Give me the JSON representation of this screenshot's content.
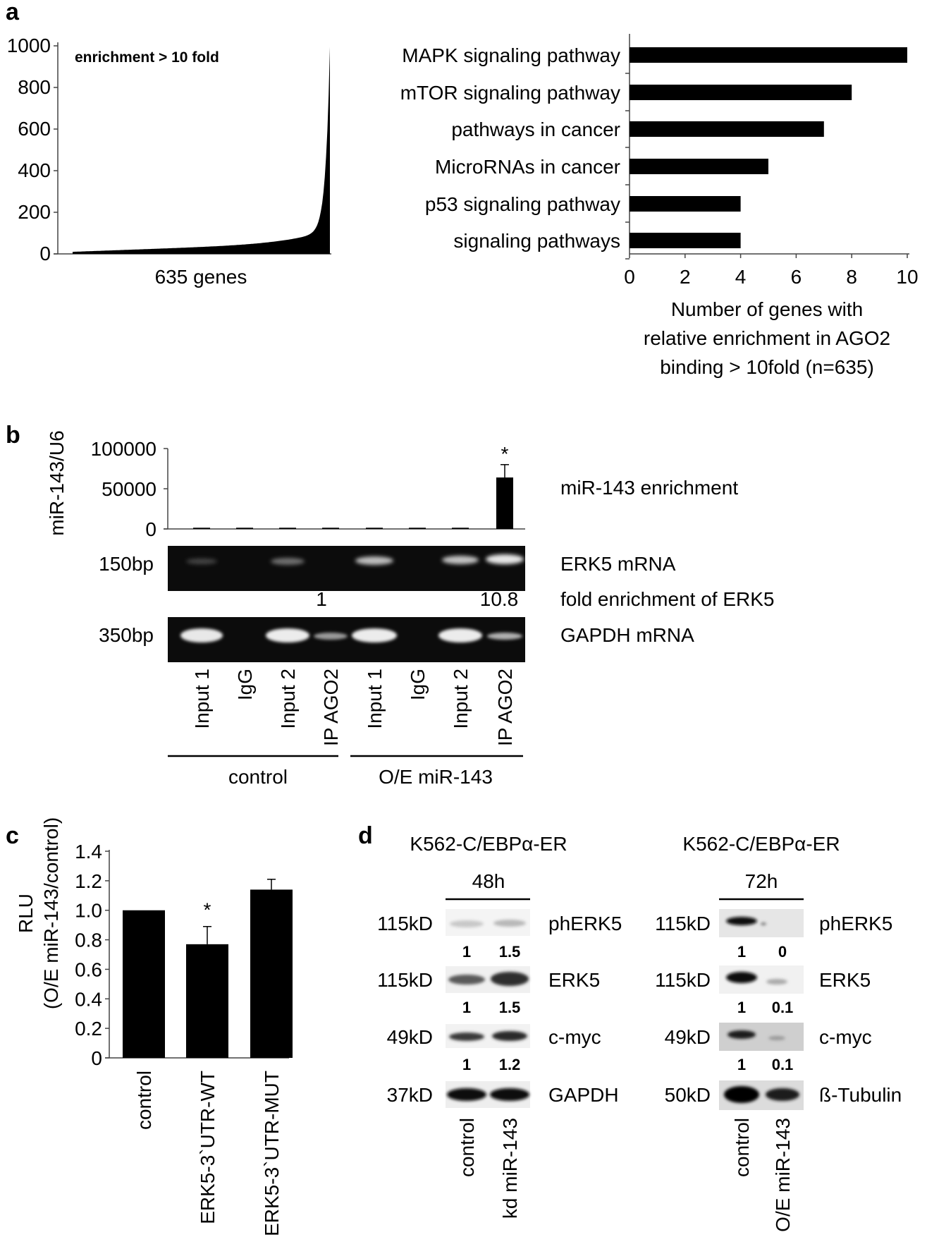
{
  "panels": {
    "a": {
      "letter": "a",
      "distribution": {
        "type": "bar",
        "annotation": "enrichment > 10 fold",
        "xlabel": "635 genes",
        "n_genes": 635,
        "ylim": [
          0,
          1000
        ],
        "yticks": [
          "1000",
          "800",
          "600",
          "400",
          "200",
          "0"
        ]
      },
      "pathways": {
        "type": "bar",
        "orientation": "horizontal",
        "categories": [
          "MAPK signaling pathway",
          "mTOR signaling pathway",
          "pathways in cancer",
          "MicroRNAs in cancer",
          "p53 signaling pathway",
          "signaling pathways"
        ],
        "values": [
          10,
          8,
          7,
          5,
          4,
          4
        ],
        "xlim": [
          0,
          10
        ],
        "xticks": [
          "0",
          "2",
          "4",
          "6",
          "8",
          "10"
        ],
        "xlabel_lines": [
          "Number of genes with",
          "relative enrichment in AGO2",
          "binding > 10fold (n=635)"
        ]
      }
    },
    "b": {
      "letter": "b",
      "chart": {
        "type": "bar",
        "ylabel": "miR-143/U6",
        "ylim": [
          0,
          100000
        ],
        "yticks": [
          "100000",
          "50000",
          "0"
        ],
        "values": [
          1500,
          1500,
          1500,
          1500,
          1500,
          1500,
          1500,
          64000
        ],
        "errors": [
          0,
          0,
          0,
          0,
          0,
          0,
          0,
          16000
        ],
        "significance": "*",
        "label": "miR-143 enrichment"
      },
      "gel_erk5": {
        "size": "150bp",
        "label": "ERK5 mRNA"
      },
      "fold": {
        "label": "fold enrichment of ERK5",
        "value_control": "1",
        "value_oe": "10.8"
      },
      "gel_gapdh": {
        "size": "350bp",
        "label": "GAPDH mRNA"
      },
      "lanes": [
        "Input 1",
        "IgG",
        "Input 2",
        "IP AGO2",
        "Input 1",
        "IgG",
        "Input 2",
        "IP AGO2"
      ],
      "groups": [
        "control",
        "O/E miR-143"
      ]
    },
    "c": {
      "letter": "c",
      "chart": {
        "type": "bar",
        "ylabel_lines": [
          "RLU",
          "(O/E miR-143/control)"
        ],
        "ylim": [
          0,
          1.4
        ],
        "yticks": [
          "1.4",
          "1.2",
          "1.0",
          "0.8",
          "0.6",
          "0.4",
          "0.2",
          "0"
        ],
        "categories": [
          "control",
          "ERK5-3`UTR-WT",
          "ERK5-3`UTR-MUT"
        ],
        "values": [
          1.0,
          0.77,
          1.14
        ],
        "errors": [
          0,
          0.12,
          0.07
        ],
        "significance": "*"
      }
    },
    "d": {
      "letter": "d",
      "left": {
        "cell_line": "K562-C/EBPα-ER",
        "time": "48h",
        "rows": [
          {
            "size": "115kD",
            "protein": "phERK5",
            "quant": [
              "1",
              "1.5"
            ]
          },
          {
            "size": "115kD",
            "protein": "ERK5",
            "quant": [
              "1",
              "1.5"
            ]
          },
          {
            "size": "49kD",
            "protein": "c-myc",
            "quant": [
              "1",
              "1.2"
            ]
          },
          {
            "size": "37kD",
            "protein": "GAPDH",
            "quant": []
          }
        ],
        "lanes": [
          "control",
          "kd miR-143"
        ]
      },
      "right": {
        "cell_line": "K562-C/EBPα-ER",
        "time": "72h",
        "rows": [
          {
            "size": "115kD",
            "protein": "phERK5",
            "quant": [
              "1",
              "0"
            ]
          },
          {
            "size": "115kD",
            "protein": "ERK5",
            "quant": [
              "1",
              "0.1"
            ]
          },
          {
            "size": "49kD",
            "protein": "c-myc",
            "quant": [
              "1",
              "0.1"
            ]
          },
          {
            "size": "50kD",
            "protein": "ß-Tubulin",
            "quant": []
          }
        ],
        "lanes": [
          "control",
          "O/E miR-143"
        ]
      }
    }
  }
}
